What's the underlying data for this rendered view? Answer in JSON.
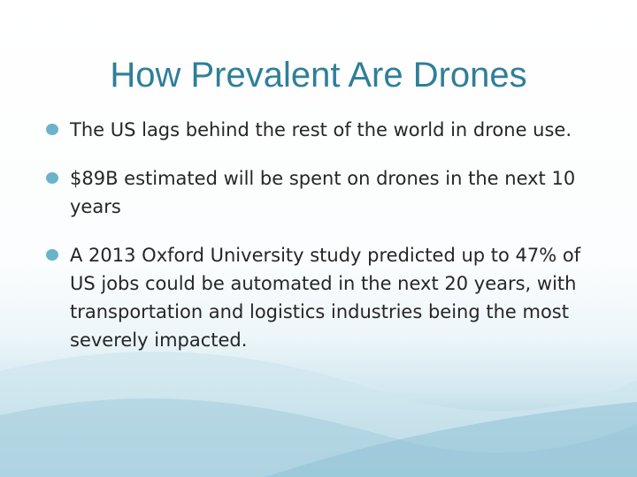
{
  "slide": {
    "title": "How Prevalent Are Drones",
    "bullets": [
      "The US lags behind the rest of the world in drone use.",
      "$89B estimated will be spent on drones in the next 10 years",
      "A 2013 Oxford University study predicted up to 47% of US jobs could be automated in the next 20 years, with transportation and logistics industries being the most severely impacted."
    ]
  },
  "colors": {
    "title": "#2f7f98",
    "bullet_marker": "#6bb3cb",
    "text": "#262626",
    "wave_light": "#d8ebf2",
    "wave_dark": "#8cc0d3"
  },
  "icons": {
    "bullet_marker": "filled-circle"
  }
}
